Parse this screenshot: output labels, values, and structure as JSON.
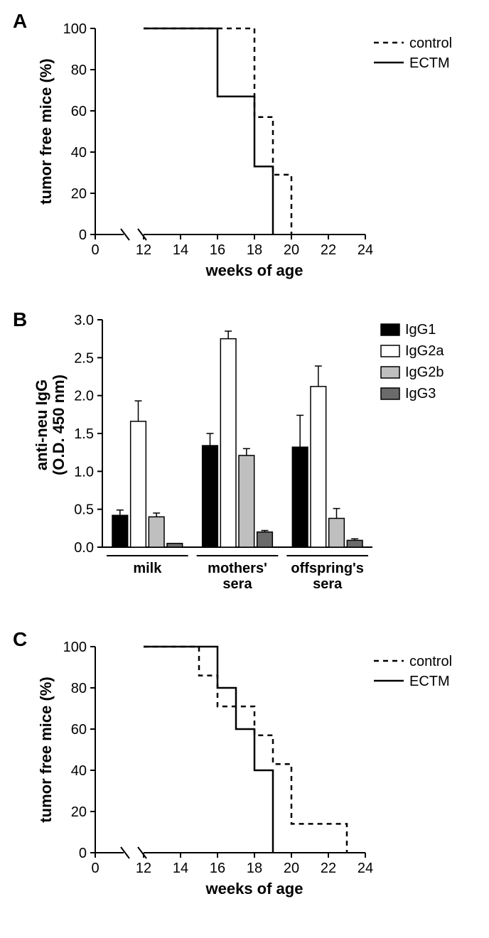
{
  "panels": {
    "A": {
      "label": "A",
      "xlabel": "weeks of age",
      "ylabel": "tumor free mice (%)",
      "xlim": [
        12,
        24
      ],
      "ylim": [
        0,
        100
      ],
      "xticks": [
        12,
        14,
        16,
        18,
        20,
        22,
        24
      ],
      "yticks": [
        0,
        20,
        40,
        60,
        80,
        100
      ],
      "break_x": [
        0,
        12
      ],
      "series": [
        {
          "name": "control",
          "dash": "6,5",
          "color": "#000000",
          "points": [
            [
              12,
              100
            ],
            [
              17,
              100
            ],
            [
              17,
              100
            ],
            [
              18,
              100
            ],
            [
              18,
              57
            ],
            [
              19,
              57
            ],
            [
              19,
              29
            ],
            [
              20,
              29
            ],
            [
              20,
              0
            ]
          ],
          "steps": [
            [
              12,
              100
            ],
            [
              17,
              100
            ],
            [
              18,
              100
            ],
            [
              18,
              57
            ],
            [
              19,
              57
            ],
            [
              19,
              29
            ],
            [
              20,
              29
            ],
            [
              20,
              0
            ]
          ]
        },
        {
          "name": "ECTM",
          "dash": "",
          "color": "#000000",
          "steps": [
            [
              12,
              100
            ],
            [
              16,
              100
            ],
            [
              16,
              67
            ],
            [
              17,
              67
            ],
            [
              17,
              67
            ],
            [
              18,
              67
            ],
            [
              18,
              33
            ],
            [
              19,
              33
            ],
            [
              19,
              17
            ],
            [
              19,
              17
            ],
            [
              19,
              0
            ]
          ]
        }
      ],
      "steps_control": [
        [
          12,
          100
        ],
        [
          17,
          100
        ],
        [
          17,
          100
        ],
        [
          18,
          100
        ],
        [
          18,
          57
        ],
        [
          19,
          57
        ],
        [
          19,
          29
        ],
        [
          20,
          29
        ],
        [
          20,
          0
        ]
      ],
      "steps_ectm": [
        [
          12,
          100
        ],
        [
          16,
          100
        ],
        [
          16,
          67
        ],
        [
          18,
          67
        ],
        [
          18,
          33
        ],
        [
          19,
          33
        ],
        [
          19,
          17
        ],
        [
          19,
          0
        ]
      ],
      "legend": [
        "control",
        "ECTM"
      ]
    },
    "B": {
      "label": "B",
      "ylabel_line1": "anti-neu IgG",
      "ylabel_line2": "(O.D. 450 nm)",
      "ylim": [
        0.0,
        3.0
      ],
      "yticks": [
        0.0,
        0.5,
        1.0,
        1.5,
        2.0,
        2.5,
        3.0
      ],
      "groups": [
        "milk",
        "mothers'\nsera",
        "offspring's\nsera"
      ],
      "series_labels": [
        "IgG1",
        "IgG2a",
        "IgG2b",
        "IgG3"
      ],
      "series_colors": [
        "#000000",
        "#ffffff",
        "#bfbfbf",
        "#6b6b6b"
      ],
      "data": {
        "milk": {
          "IgG1": [
            0.42,
            0.07
          ],
          "IgG2a": [
            1.66,
            0.27
          ],
          "IgG2b": [
            0.4,
            0.05
          ],
          "IgG3": [
            0.05,
            0.0
          ]
        },
        "mothers": {
          "IgG1": [
            1.34,
            0.16
          ],
          "IgG2a": [
            2.75,
            0.1
          ],
          "IgG2b": [
            1.21,
            0.09
          ],
          "IgG3": [
            0.2,
            0.02
          ]
        },
        "offspring": {
          "IgG1": [
            1.32,
            0.42
          ],
          "IgG2a": [
            2.12,
            0.27
          ],
          "IgG2b": [
            0.38,
            0.13
          ],
          "IgG3": [
            0.09,
            0.02
          ]
        }
      }
    },
    "C": {
      "label": "C",
      "xlabel": "weeks of age",
      "ylabel": "tumor free mice (%)",
      "xlim": [
        12,
        24
      ],
      "ylim": [
        0,
        100
      ],
      "xticks": [
        12,
        14,
        16,
        18,
        20,
        22,
        24
      ],
      "yticks": [
        0,
        20,
        40,
        60,
        80,
        100
      ],
      "steps_control": [
        [
          12,
          100
        ],
        [
          15,
          100
        ],
        [
          15,
          86
        ],
        [
          16,
          86
        ],
        [
          16,
          71
        ],
        [
          18,
          71
        ],
        [
          18,
          57
        ],
        [
          19,
          57
        ],
        [
          19,
          43
        ],
        [
          20,
          43
        ],
        [
          20,
          14
        ],
        [
          23,
          14
        ],
        [
          23,
          0
        ]
      ],
      "steps_ectm": [
        [
          12,
          100
        ],
        [
          16,
          100
        ],
        [
          16,
          80
        ],
        [
          17,
          80
        ],
        [
          17,
          60
        ],
        [
          18,
          60
        ],
        [
          18,
          40
        ],
        [
          19,
          40
        ],
        [
          19,
          20
        ],
        [
          19,
          0
        ]
      ],
      "legend": [
        "control",
        "ECTM"
      ]
    }
  },
  "style": {
    "bg": "#ffffff",
    "axis_color": "#000000",
    "label_fontsize": 20,
    "title_fontsize": 22,
    "panel_label_fontsize": 28
  }
}
